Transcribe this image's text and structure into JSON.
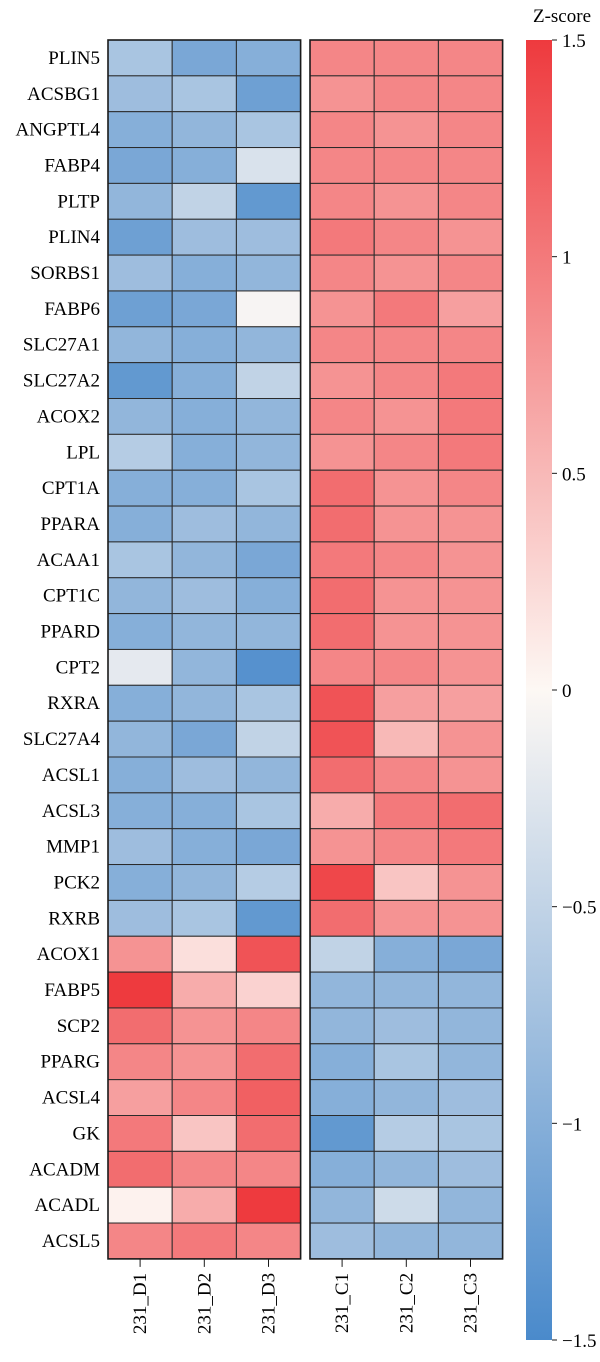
{
  "chart_data": {
    "type": "heatmap",
    "title": "",
    "legend": {
      "title": "Z-score",
      "range": [
        -1.5,
        1.5
      ],
      "ticks": [
        {
          "value": 1.5,
          "label": "1.5"
        },
        {
          "value": 1,
          "label": "1"
        },
        {
          "value": 0.5,
          "label": "0.5"
        },
        {
          "value": 0,
          "label": "0"
        },
        {
          "value": -0.5,
          "label": "−0.5"
        },
        {
          "value": -1,
          "label": "−1"
        },
        {
          "value": -1.5,
          "label": "−1.5"
        }
      ],
      "placement": "right"
    },
    "colors": {
      "low": "#4a8acb",
      "mid": "#fdf8f4",
      "high": "#ee3a3e"
    },
    "columns": [
      "231_D1",
      "231_D2",
      "231_D3",
      "231_C1",
      "231_C2",
      "231_C3"
    ],
    "column_groups": [
      [
        0,
        1,
        2
      ],
      [
        3,
        4,
        5
      ]
    ],
    "rows": [
      "PLIN5",
      "ACSBG1",
      "ANGPTL4",
      "FABP4",
      "PLTP",
      "PLIN4",
      "SORBS1",
      "FABP6",
      "SLC27A1",
      "SLC27A2",
      "ACOX2",
      "LPL",
      "CPT1A",
      "PPARA",
      "ACAA1",
      "CPT1C",
      "PPARD",
      "CPT2",
      "RXRA",
      "SLC27A4",
      "ACSL1",
      "ACSL3",
      "MMP1",
      "PCK2",
      "RXRB",
      "ACOX1",
      "FABP5",
      "SCP2",
      "PPARG",
      "ACSL4",
      "GK",
      "ACADM",
      "ACADL",
      "ACSL5"
    ],
    "values": [
      [
        -0.7,
        -1.1,
        -1.0,
        0.9,
        0.9,
        0.9
      ],
      [
        -0.8,
        -0.7,
        -1.2,
        0.8,
        0.9,
        0.9
      ],
      [
        -1.0,
        -0.9,
        -0.7,
        0.9,
        0.8,
        0.9
      ],
      [
        -1.1,
        -1.0,
        -0.3,
        0.9,
        0.9,
        0.9
      ],
      [
        -0.9,
        -0.5,
        -1.3,
        0.9,
        0.8,
        0.9
      ],
      [
        -1.2,
        -0.8,
        -0.8,
        1.0,
        0.9,
        0.8
      ],
      [
        -0.8,
        -1.0,
        -0.9,
        0.9,
        0.8,
        0.9
      ],
      [
        -1.2,
        -1.1,
        -0.05,
        0.8,
        1.0,
        0.7
      ],
      [
        -0.9,
        -1.0,
        -0.9,
        0.9,
        0.9,
        0.9
      ],
      [
        -1.3,
        -1.0,
        -0.5,
        0.8,
        0.9,
        1.0
      ],
      [
        -0.9,
        -1.0,
        -0.9,
        0.9,
        0.8,
        1.0
      ],
      [
        -0.6,
        -1.0,
        -0.9,
        0.8,
        0.9,
        1.0
      ],
      [
        -1.0,
        -1.0,
        -0.7,
        1.1,
        0.8,
        0.9
      ],
      [
        -1.0,
        -0.8,
        -0.9,
        1.1,
        0.8,
        0.8
      ],
      [
        -0.7,
        -0.9,
        -1.1,
        1.0,
        0.9,
        0.8
      ],
      [
        -0.9,
        -0.8,
        -1.0,
        1.1,
        0.8,
        0.8
      ],
      [
        -1.0,
        -0.9,
        -0.9,
        1.1,
        0.8,
        0.8
      ],
      [
        -0.2,
        -0.9,
        -1.4,
        0.9,
        0.9,
        0.8
      ],
      [
        -1.0,
        -0.9,
        -0.7,
        1.3,
        0.7,
        0.7
      ],
      [
        -0.9,
        -1.1,
        -0.5,
        1.3,
        0.5,
        0.8
      ],
      [
        -1.0,
        -0.8,
        -0.9,
        1.1,
        0.9,
        0.8
      ],
      [
        -1.0,
        -1.0,
        -0.7,
        0.6,
        1.0,
        1.1
      ],
      [
        -0.8,
        -1.0,
        -1.1,
        0.8,
        0.9,
        1.0
      ],
      [
        -1.0,
        -0.9,
        -0.6,
        1.4,
        0.4,
        0.8
      ],
      [
        -0.8,
        -0.7,
        -1.3,
        1.1,
        0.8,
        0.8
      ],
      [
        0.8,
        0.2,
        1.3,
        -0.5,
        -1.0,
        -1.1
      ],
      [
        1.5,
        0.6,
        0.3,
        -0.9,
        -0.9,
        -0.9
      ],
      [
        1.1,
        0.8,
        0.9,
        -0.9,
        -0.8,
        -0.9
      ],
      [
        0.9,
        0.8,
        1.1,
        -1.0,
        -0.7,
        -0.9
      ],
      [
        0.7,
        0.9,
        1.2,
        -1.0,
        -0.9,
        -0.8
      ],
      [
        1.0,
        0.4,
        1.1,
        -1.3,
        -0.6,
        -0.7
      ],
      [
        1.1,
        0.9,
        0.9,
        -1.0,
        -0.9,
        -0.8
      ],
      [
        0.05,
        0.6,
        1.5,
        -0.9,
        -0.4,
        -0.9
      ],
      [
        0.9,
        1.0,
        0.9,
        -0.8,
        -0.9,
        -0.9
      ]
    ]
  }
}
